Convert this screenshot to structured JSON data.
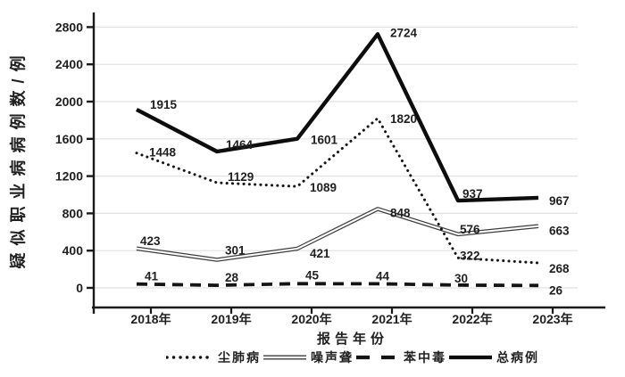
{
  "chart_data": {
    "type": "line",
    "title": "",
    "xlabel": "报告年份",
    "ylabel": "疑似职业病病例数/例",
    "categories": [
      "2018年",
      "2019年",
      "2020年",
      "2021年",
      "2022年",
      "2023年"
    ],
    "y_ticks": [
      0,
      400,
      800,
      1200,
      1600,
      2000,
      2400,
      2800
    ],
    "ylim": [
      0,
      2800
    ],
    "grid": "horizontal",
    "legend_position": "bottom",
    "data_labels": true,
    "series": [
      {
        "name": "尘肺病",
        "style": "dotted",
        "color": "#141414",
        "values": [
          1448,
          1129,
          1089,
          1820,
          322,
          268
        ]
      },
      {
        "name": "噪声聋",
        "style": "double",
        "color": "#3d3d3d",
        "values": [
          423,
          301,
          421,
          848,
          576,
          663
        ]
      },
      {
        "name": "苯中毒",
        "style": "dashed",
        "color": "#141414",
        "values": [
          41,
          28,
          45,
          44,
          30,
          26
        ]
      },
      {
        "name": "总病例",
        "style": "solid",
        "color": "#0d0d0d",
        "values": [
          1915,
          1464,
          1601,
          2724,
          937,
          967
        ]
      }
    ],
    "colors": {
      "grid": "#e2e2e2",
      "axis": "#1a1a1a",
      "text": "#1f1f1f",
      "background": "#ffffff"
    }
  }
}
